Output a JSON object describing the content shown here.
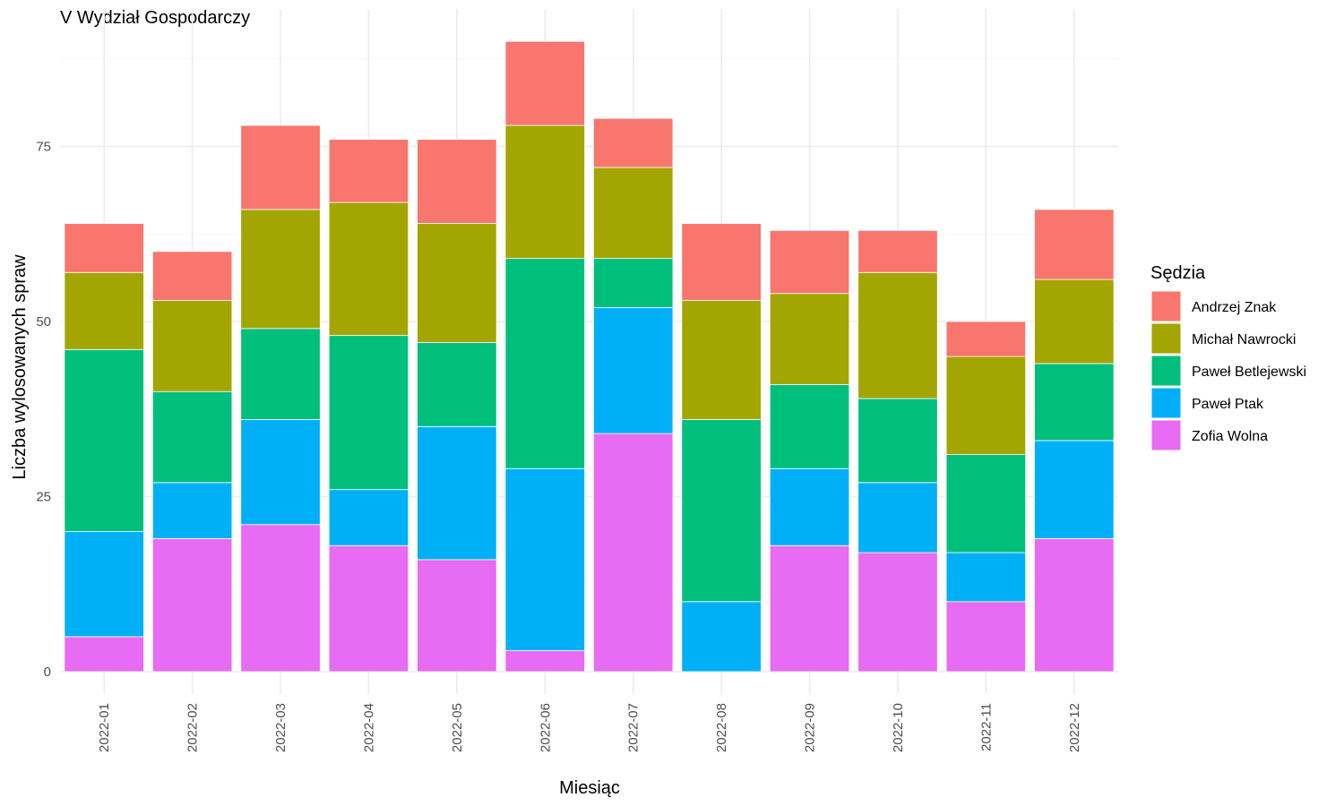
{
  "chart_data": {
    "type": "bar",
    "stacked": true,
    "title": "V Wydział Gospodarczy",
    "xlabel": "Miesiąc",
    "ylabel": "Liczba wylosowanych spraw",
    "ylim": [
      0,
      90
    ],
    "y_ticks": [
      0,
      25,
      50,
      75
    ],
    "grid": true,
    "legend_title": "Sędzia",
    "legend_position": "right",
    "categories": [
      "2022-01",
      "2022-02",
      "2022-03",
      "2022-04",
      "2022-05",
      "2022-06",
      "2022-07",
      "2022-08",
      "2022-09",
      "2022-10",
      "2022-11",
      "2022-12"
    ],
    "series": [
      {
        "name": "Zofia Wolna",
        "color": "#E76BF3",
        "values": [
          5,
          19,
          21,
          18,
          16,
          3,
          34,
          0,
          18,
          17,
          10,
          19
        ]
      },
      {
        "name": "Paweł Ptak",
        "color": "#00B0F6",
        "values": [
          15,
          8,
          15,
          8,
          19,
          26,
          18,
          10,
          11,
          10,
          7,
          14
        ]
      },
      {
        "name": "Paweł Betlejewski",
        "color": "#00BF7D",
        "values": [
          26,
          13,
          13,
          22,
          12,
          30,
          7,
          26,
          12,
          12,
          14,
          11
        ]
      },
      {
        "name": "Michał Nawrocki",
        "color": "#A3A500",
        "values": [
          11,
          13,
          17,
          19,
          17,
          19,
          13,
          17,
          13,
          18,
          14,
          12
        ]
      },
      {
        "name": "Andrzej Znak",
        "color": "#F8766D",
        "values": [
          7,
          7,
          12,
          9,
          12,
          12,
          7,
          11,
          9,
          6,
          5,
          10
        ]
      }
    ],
    "legend_order": [
      "Andrzej Znak",
      "Michał Nawrocki",
      "Paweł Betlejewski",
      "Paweł Ptak",
      "Zofia Wolna"
    ]
  }
}
